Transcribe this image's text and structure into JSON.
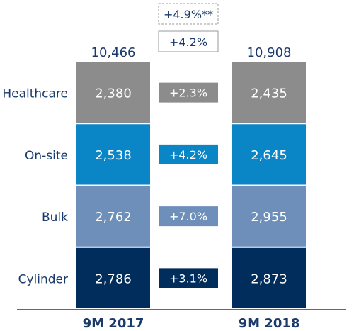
{
  "chart_data": {
    "type": "bar",
    "stacked": true,
    "categories": [
      "9M 2017",
      "9M 2018"
    ],
    "series": [
      {
        "name": "Cylinder",
        "values": [
          2786,
          2873
        ],
        "color": "#002d5b",
        "change": "+3.1%"
      },
      {
        "name": "Bulk",
        "values": [
          2762,
          2955
        ],
        "color": "#6e8fba",
        "change": "+7.0%"
      },
      {
        "name": "On-site",
        "values": [
          2538,
          2645
        ],
        "color": "#0a85c6",
        "change": "+4.2%"
      },
      {
        "name": "Healthcare",
        "values": [
          2380,
          2435
        ],
        "color": "#8c8c8c",
        "change": "+2.3%"
      }
    ],
    "totals": [
      "10,466",
      "10,908"
    ],
    "total_change": "+4.2%",
    "total_change_note": "+4.9%**",
    "value_labels": [
      [
        "2,786",
        "2,873"
      ],
      [
        "2,762",
        "2,955"
      ],
      [
        "2,538",
        "2,645"
      ],
      [
        "2,380",
        "2,435"
      ]
    ],
    "axis_color": "#1a3a6b",
    "text_color": "#1a3a6b"
  }
}
